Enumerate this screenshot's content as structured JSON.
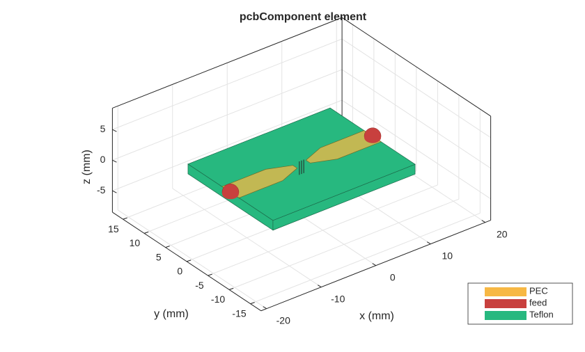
{
  "chart_data": {
    "type": "pcb3d",
    "title": "pcbComponent element",
    "xlabel": "x (mm)",
    "ylabel": "y (mm)",
    "zlabel": "z (mm)",
    "xlim": [
      -21,
      21
    ],
    "ylim": [
      -17.5,
      17.5
    ],
    "zlim": [
      -8.5,
      8.5
    ],
    "xticks": [
      -20,
      -10,
      0,
      10,
      20
    ],
    "yticks": [
      -15,
      -10,
      -5,
      0,
      5,
      10,
      15
    ],
    "zticks": [
      -5,
      0,
      5
    ],
    "grid": true,
    "legend": "lower right",
    "series": [
      {
        "name": "PEC",
        "color": "#f7b844"
      },
      {
        "name": "feed",
        "color": "#c8403e"
      },
      {
        "name": "Teflon",
        "color": "#27b87f"
      }
    ]
  }
}
